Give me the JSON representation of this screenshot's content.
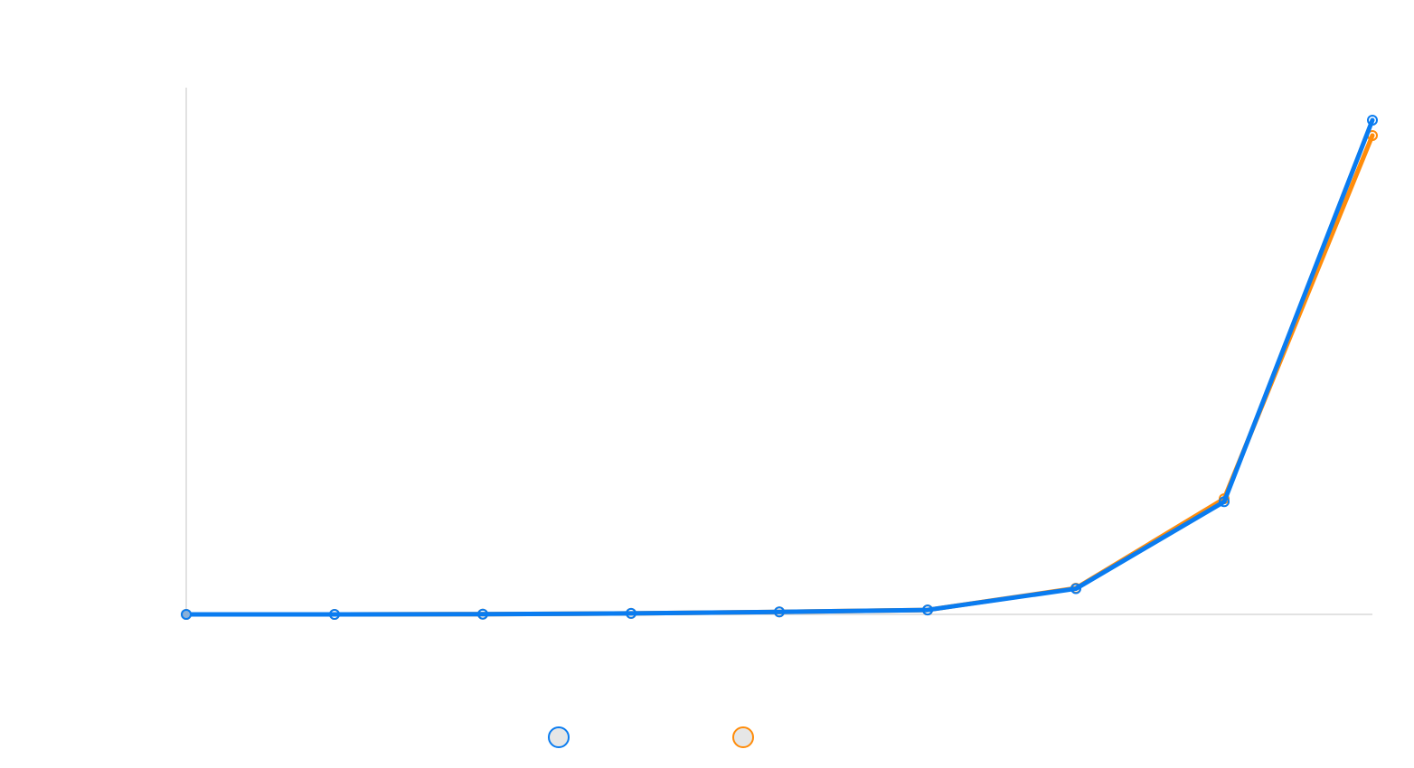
{
  "chart_data": {
    "type": "line",
    "title": "",
    "xlabel": "",
    "ylabel": "",
    "x": [
      1,
      2,
      3,
      4,
      5,
      6,
      7,
      8,
      9
    ],
    "xlim": [
      1,
      9
    ],
    "ylim": [
      0,
      100
    ],
    "grid": false,
    "legend": "bottom-center",
    "series": [
      {
        "name": "",
        "color": "#0a7cf0",
        "values": [
          0,
          0,
          0.05,
          0.2,
          0.5,
          0.9,
          5.2,
          22.8,
          100
        ]
      },
      {
        "name": "",
        "color": "#ff8c0a",
        "values": [
          0,
          0,
          0.05,
          0.2,
          0.5,
          0.9,
          5.3,
          23.4,
          96.9
        ]
      }
    ]
  }
}
